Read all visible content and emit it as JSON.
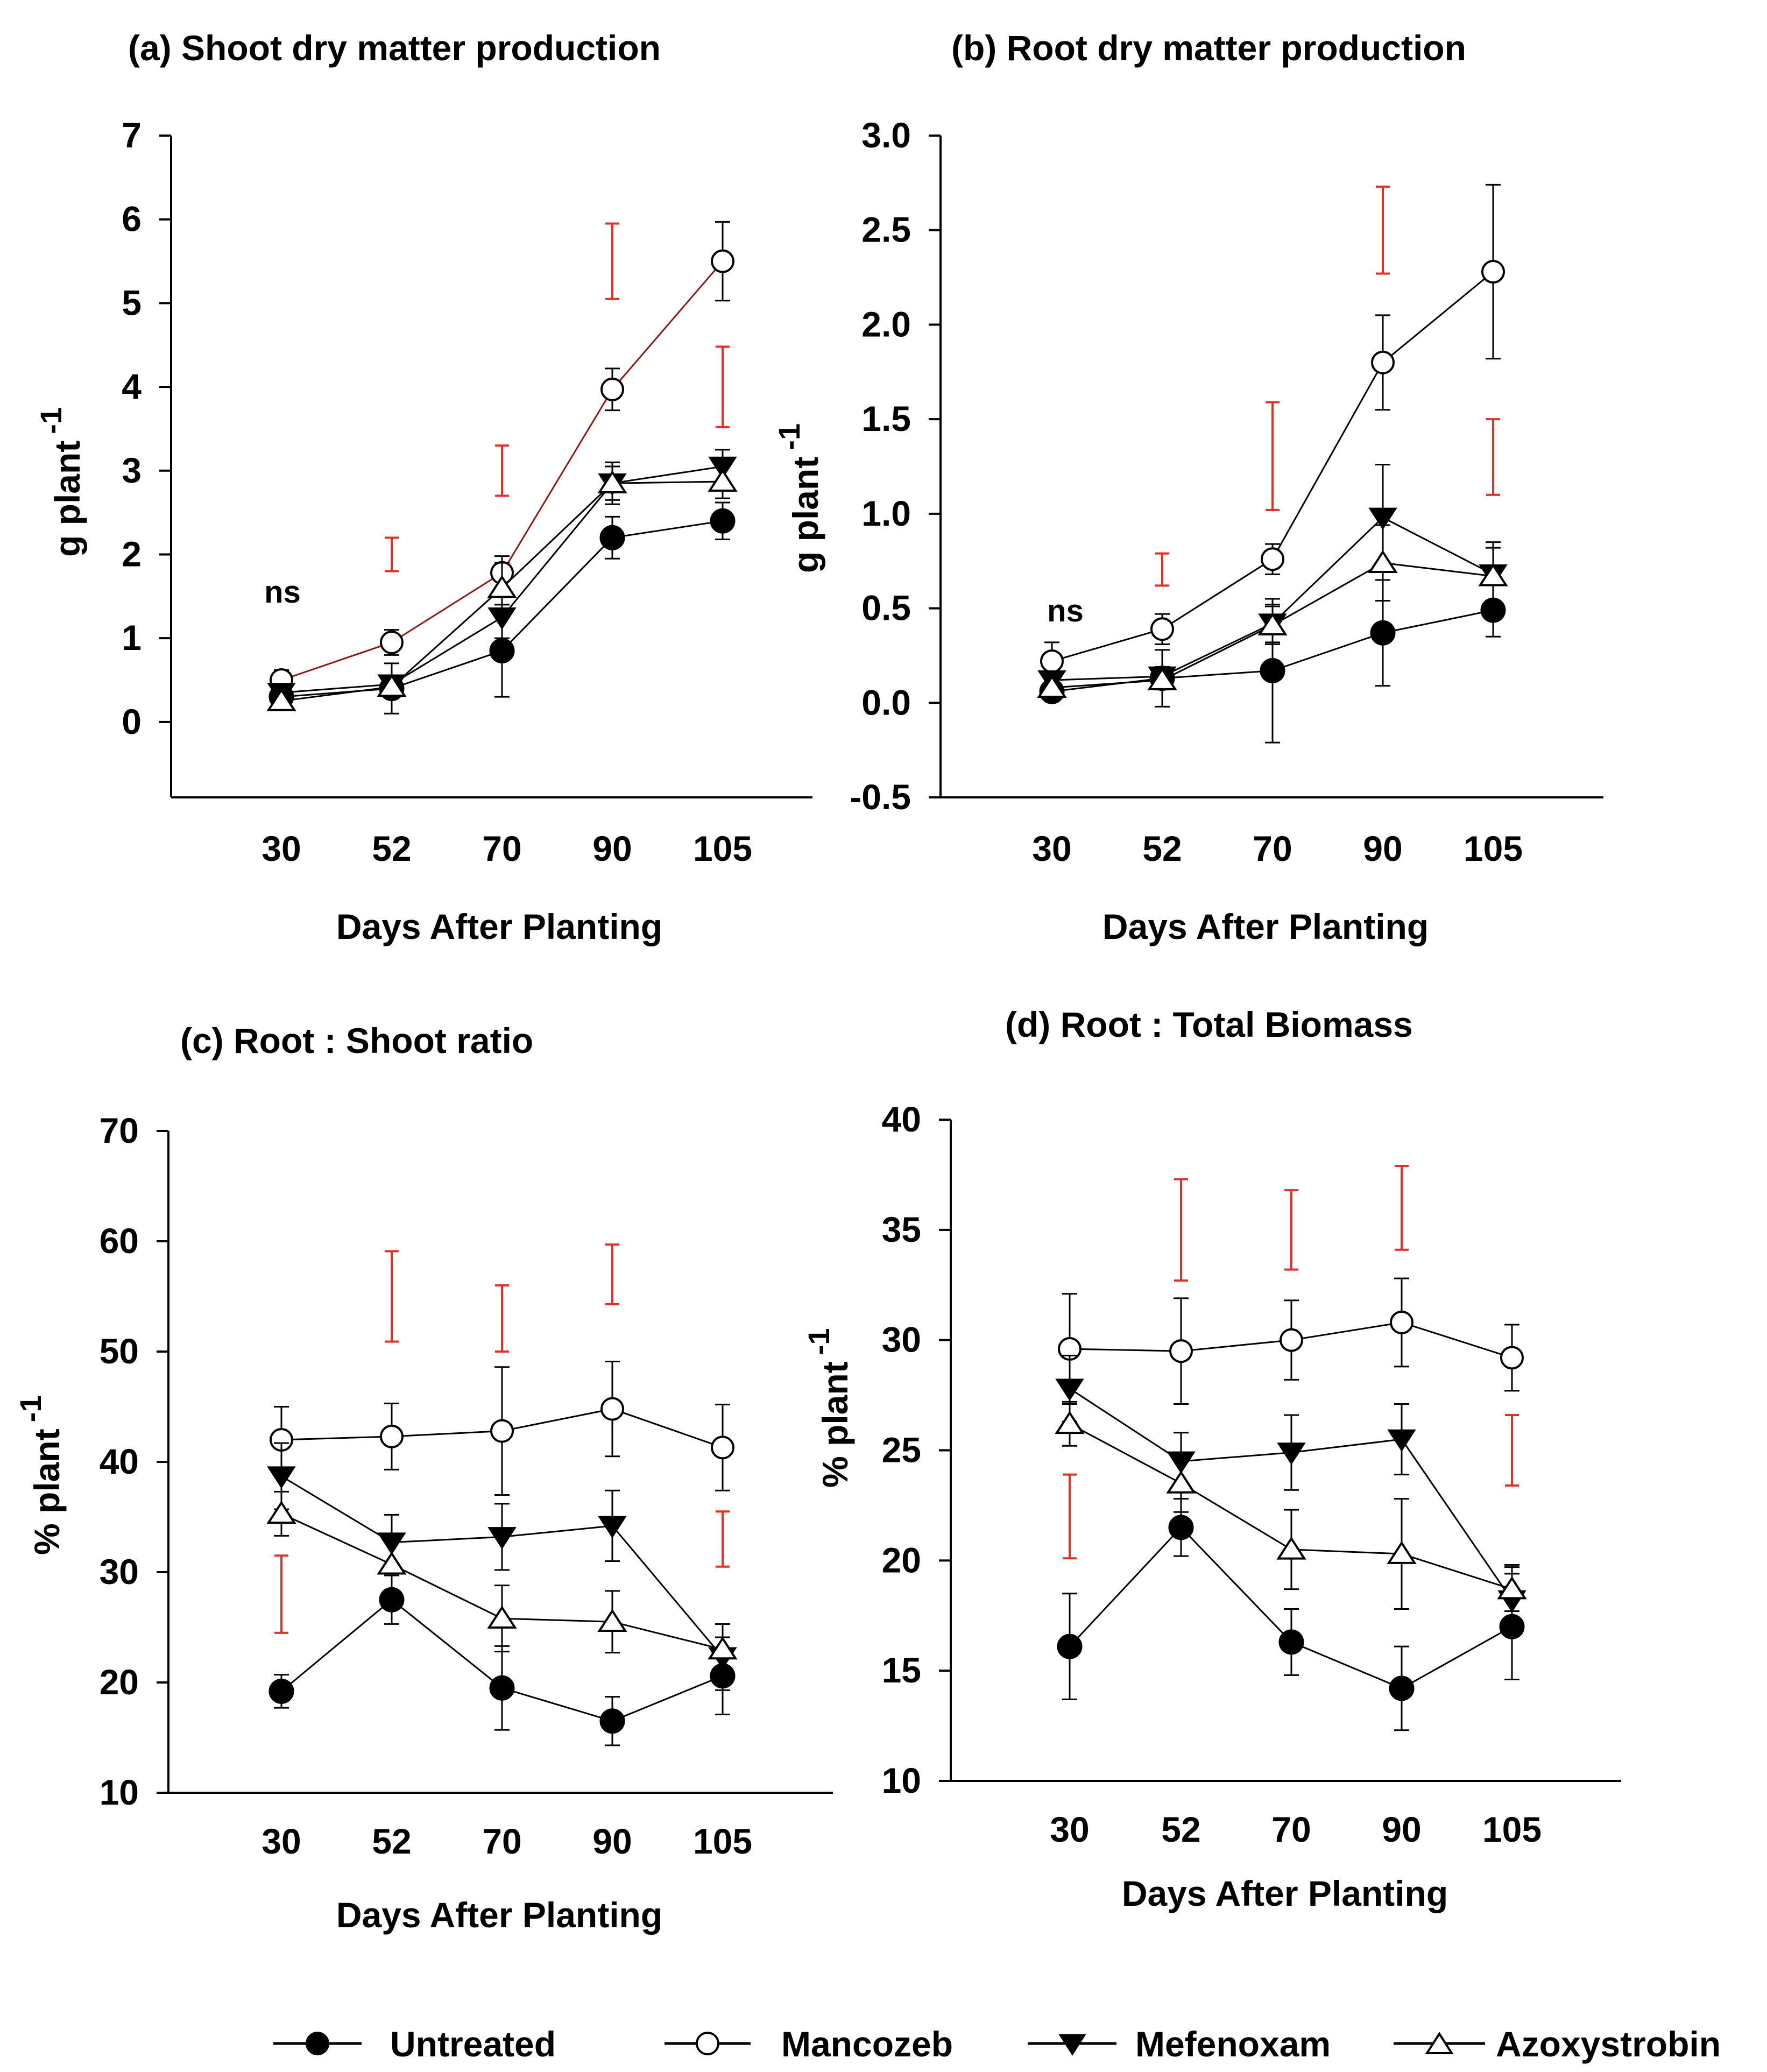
{
  "chart_data": [
    {
      "type": "line",
      "title": "(a) Shoot dry matter production",
      "xlabel": "Days After Planting",
      "ylabel": "g plant",
      "ylabel_sup": "-1",
      "categories": [
        "30",
        "52",
        "70",
        "90",
        "105"
      ],
      "ylim": [
        -0.9,
        7
      ],
      "yticks": [
        0,
        1,
        2,
        3,
        4,
        5,
        6,
        7
      ],
      "ytick_labels": [
        "0",
        "1",
        "2",
        "3",
        "4",
        "5",
        "6",
        "7"
      ],
      "annotation": "ns",
      "series": [
        {
          "name": "Untreated",
          "values": [
            0.3,
            0.4,
            0.85,
            2.2,
            2.4
          ],
          "err": [
            0.08,
            0.3,
            0.55,
            0.25,
            0.22
          ]
        },
        {
          "name": "Mancozeb",
          "values": [
            0.5,
            0.95,
            1.78,
            3.97,
            5.5
          ],
          "err": [
            0.12,
            0.15,
            0.2,
            0.25,
            0.47
          ]
        },
        {
          "name": "Mefenoxam",
          "values": [
            0.35,
            0.45,
            1.25,
            2.85,
            3.05
          ],
          "err": [
            0.05,
            0.1,
            0.25,
            0.25,
            0.2
          ]
        },
        {
          "name": "Azoxystrobin",
          "values": [
            0.25,
            0.42,
            1.6,
            2.85,
            2.87
          ],
          "err": [
            0.08,
            0.12,
            0.3,
            0.2,
            0.2
          ]
        }
      ],
      "lsd_bars": [
        {
          "x": "52",
          "low": 1.8,
          "high": 2.2
        },
        {
          "x": "70",
          "low": 2.7,
          "high": 3.3
        },
        {
          "x": "90",
          "low": 5.05,
          "high": 5.95
        },
        {
          "x": "105",
          "low": 3.52,
          "high": 4.48
        }
      ]
    },
    {
      "type": "line",
      "title": "(b) Root dry matter production",
      "xlabel": "Days After Planting",
      "ylabel": "g plant",
      "ylabel_sup": "-1",
      "categories": [
        "30",
        "52",
        "70",
        "90",
        "105"
      ],
      "ylim": [
        -0.5,
        3.0
      ],
      "yticks": [
        -0.5,
        0,
        0.5,
        1.0,
        1.5,
        2.0,
        2.5,
        3.0
      ],
      "ytick_labels": [
        "-0.5",
        "0.0",
        "0.5",
        "1.0",
        "1.5",
        "2.0",
        "2.5",
        "3.0"
      ],
      "annotation": "ns",
      "series": [
        {
          "name": "Untreated",
          "values": [
            0.06,
            0.13,
            0.17,
            0.37,
            0.49
          ],
          "err": [
            0.03,
            0.15,
            0.38,
            0.28,
            0.14
          ]
        },
        {
          "name": "Mancozeb",
          "values": [
            0.22,
            0.39,
            0.76,
            1.8,
            2.28
          ],
          "err": [
            0.1,
            0.08,
            0.08,
            0.25,
            0.46
          ]
        },
        {
          "name": "Mefenoxam",
          "values": [
            0.12,
            0.14,
            0.42,
            0.98,
            0.68
          ],
          "err": [
            0.04,
            0.05,
            0.1,
            0.28,
            0.17
          ]
        },
        {
          "name": "Azoxystrobin",
          "values": [
            0.08,
            0.12,
            0.41,
            0.74,
            0.67
          ],
          "err": [
            0.04,
            0.05,
            0.1,
            0.2,
            0.15
          ]
        }
      ],
      "lsd_bars": [
        {
          "x": "52",
          "low": 0.62,
          "high": 0.79
        },
        {
          "x": "70",
          "low": 1.02,
          "high": 1.59
        },
        {
          "x": "90",
          "low": 2.27,
          "high": 2.73
        },
        {
          "x": "105",
          "low": 1.1,
          "high": 1.5
        }
      ]
    },
    {
      "type": "line",
      "title": "(c) Root : Shoot ratio",
      "xlabel": "Days After Planting",
      "ylabel": "% plant",
      "ylabel_sup": "-1",
      "categories": [
        "30",
        "52",
        "70",
        "90",
        "105"
      ],
      "ylim": [
        10,
        70
      ],
      "yticks": [
        10,
        20,
        30,
        40,
        50,
        60,
        70
      ],
      "ytick_labels": [
        "10",
        "20",
        "30",
        "40",
        "50",
        "60",
        "70"
      ],
      "series": [
        {
          "name": "Untreated",
          "values": [
            19.2,
            27.5,
            19.5,
            16.5,
            20.6
          ],
          "err": [
            1.5,
            2.2,
            3.8,
            2.2,
            3.5
          ]
        },
        {
          "name": "Mancozeb",
          "values": [
            42.0,
            42.3,
            42.8,
            44.8,
            41.3
          ],
          "err": [
            3.0,
            3.0,
            5.8,
            4.3,
            3.9
          ]
        },
        {
          "name": "Mefenoxam",
          "values": [
            38.7,
            32.7,
            33.2,
            34.2,
            22.3
          ],
          "err": [
            3.0,
            2.5,
            3.0,
            3.2,
            3.0
          ]
        },
        {
          "name": "Azoxystrobin",
          "values": [
            35.3,
            30.7,
            25.8,
            25.5,
            23.0
          ],
          "err": [
            2.0,
            2.5,
            3.0,
            2.8,
            2.3
          ]
        }
      ],
      "lsd_bars": [
        {
          "x": "30",
          "low": 24.5,
          "high": 31.5
        },
        {
          "x": "52",
          "low": 50.9,
          "high": 59.1
        },
        {
          "x": "70",
          "low": 50.0,
          "high": 56.0
        },
        {
          "x": "90",
          "low": 54.3,
          "high": 59.7
        },
        {
          "x": "105",
          "low": 30.5,
          "high": 35.5
        }
      ]
    },
    {
      "type": "line",
      "title": "(d) Root : Total Biomass",
      "xlabel": "Days After Planting",
      "ylabel": "% plant",
      "ylabel_sup": "-1",
      "categories": [
        "30",
        "52",
        "70",
        "90",
        "105"
      ],
      "ylim": [
        10,
        40
      ],
      "yticks": [
        10,
        15,
        20,
        25,
        30,
        35,
        40
      ],
      "ytick_labels": [
        "10",
        "15",
        "20",
        "25",
        "30",
        "35",
        "40"
      ],
      "series": [
        {
          "name": "Untreated",
          "values": [
            16.1,
            21.5,
            16.3,
            14.2,
            17.0
          ],
          "err": [
            2.4,
            1.3,
            1.5,
            1.9,
            2.4
          ]
        },
        {
          "name": "Mancozeb",
          "values": [
            29.6,
            29.5,
            30.0,
            30.8,
            29.2
          ],
          "err": [
            2.5,
            2.4,
            1.8,
            2.0,
            1.5
          ]
        },
        {
          "name": "Mefenoxam",
          "values": [
            27.8,
            24.5,
            24.9,
            25.5,
            18.2
          ],
          "err": [
            1.5,
            1.3,
            1.7,
            1.6,
            1.6
          ]
        },
        {
          "name": "Azoxystrobin",
          "values": [
            26.2,
            23.5,
            20.5,
            20.3,
            18.7
          ],
          "err": [
            1.0,
            1.3,
            1.8,
            2.5,
            1.0
          ]
        }
      ],
      "lsd_bars": [
        {
          "x": "30",
          "low": 20.1,
          "high": 23.9
        },
        {
          "x": "52",
          "low": 32.7,
          "high": 37.3
        },
        {
          "x": "70",
          "low": 33.2,
          "high": 36.8
        },
        {
          "x": "90",
          "low": 34.1,
          "high": 37.9
        },
        {
          "x": "105",
          "low": 23.4,
          "high": 26.6
        }
      ]
    }
  ],
  "legend": {
    "items": [
      {
        "label": "Untreated",
        "marker": "filled-circle"
      },
      {
        "label": "Mancozeb",
        "marker": "open-circle"
      },
      {
        "label": "Mefenoxam",
        "marker": "filled-triangle-down"
      },
      {
        "label": "Azoxystrobin",
        "marker": "open-triangle-up"
      }
    ]
  },
  "colors": {
    "series_line": "#000000",
    "lsd_bar": "#e0302a",
    "mancozeb_line_a": "#8b1a1a"
  }
}
